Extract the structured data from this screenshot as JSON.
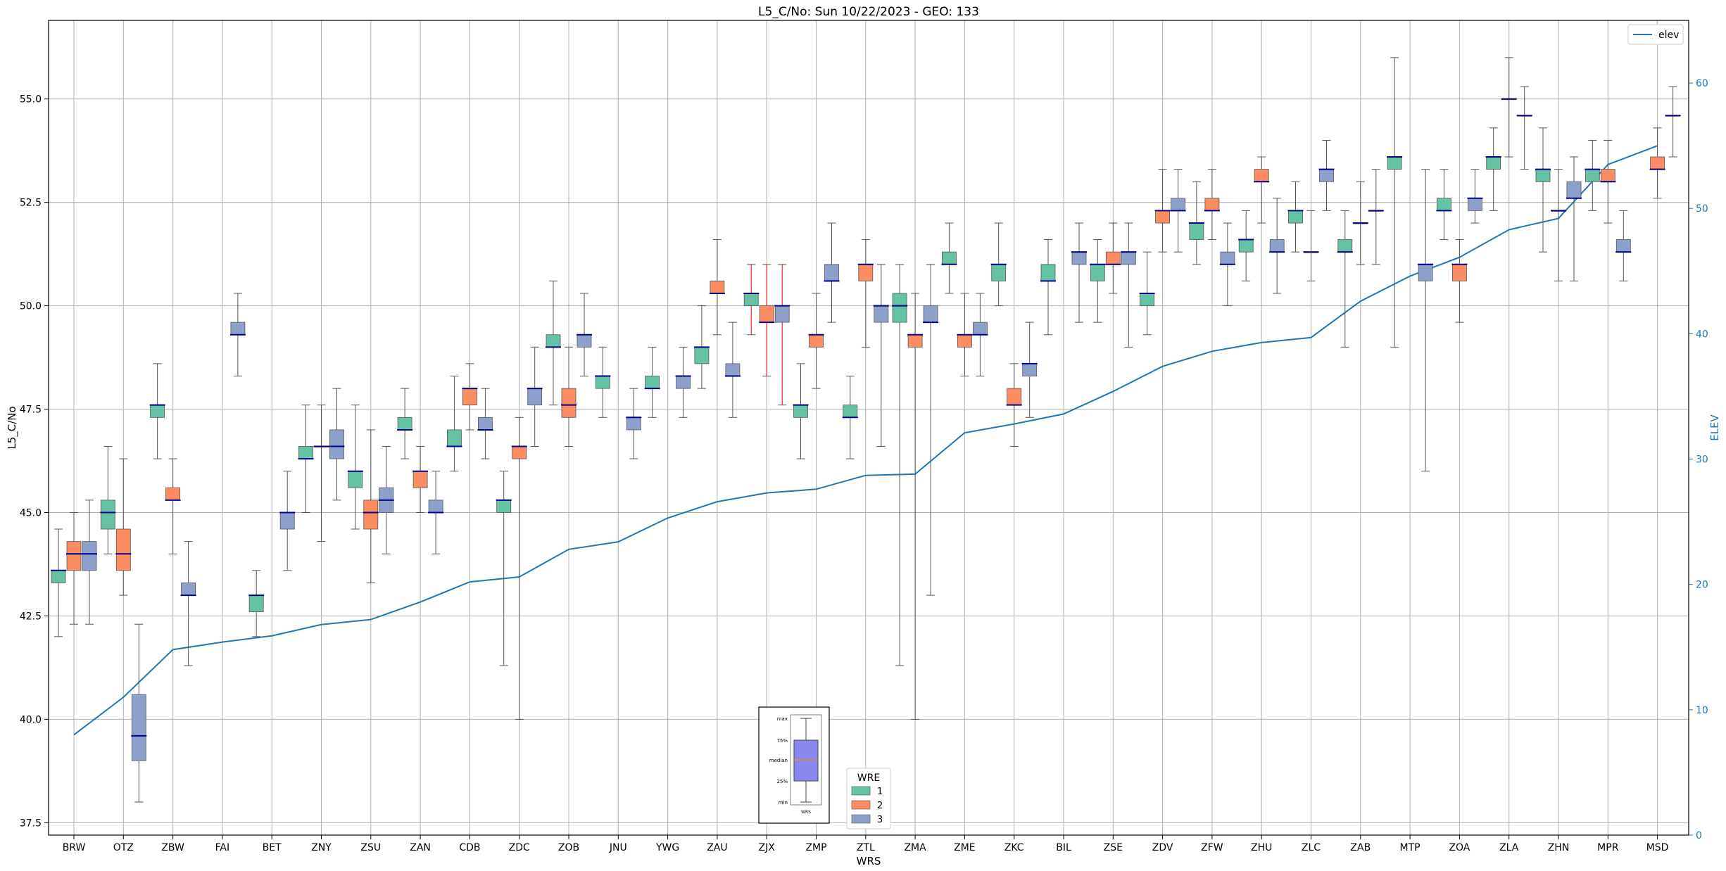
{
  "chart_data": {
    "type": "box",
    "title": "L5_C/No: Sun 10/22/2023 - GEO: 133",
    "xlabel": "WRS",
    "ylabel": "L5_C/No",
    "y2label": "ELEV",
    "ylim": [
      37.2,
      56.9
    ],
    "y2lim": [
      0,
      65
    ],
    "yticks": [
      "37.5",
      "40.0",
      "42.5",
      "45.0",
      "47.5",
      "50.0",
      "52.5",
      "55.0"
    ],
    "y2ticks": [
      "0",
      "10",
      "20",
      "30",
      "40",
      "50",
      "60"
    ],
    "grid": true,
    "categories": [
      "BRW",
      "OTZ",
      "ZBW",
      "FAI",
      "BET",
      "ZNY",
      "ZSU",
      "ZAN",
      "CDB",
      "ZDC",
      "ZOB",
      "JNU",
      "YWG",
      "ZAU",
      "ZJX",
      "ZMP",
      "ZTL",
      "ZMA",
      "ZME",
      "ZKC",
      "BIL",
      "ZSE",
      "ZDV",
      "ZFW",
      "ZHU",
      "ZLC",
      "ZAB",
      "MTP",
      "ZOA",
      "ZLA",
      "ZHN",
      "MPR",
      "MSD"
    ],
    "elev_series": {
      "name": "elev",
      "values": [
        8.0,
        11.0,
        14.8,
        15.4,
        15.9,
        16.8,
        17.2,
        18.6,
        20.2,
        20.6,
        22.8,
        23.4,
        25.3,
        26.6,
        27.3,
        27.6,
        28.7,
        28.8,
        32.1,
        32.8,
        33.6,
        35.4,
        37.4,
        38.6,
        39.3,
        39.7,
        42.6,
        44.6,
        46.1,
        48.3,
        49.2,
        53.5,
        55.0
      ]
    },
    "legend_wre": {
      "title": "WRE",
      "entries": [
        {
          "name": "1",
          "color": "#66c2a5"
        },
        {
          "name": "2",
          "color": "#fc8d62"
        },
        {
          "name": "3",
          "color": "#8da0cb"
        }
      ]
    },
    "legend_elev": {
      "label": "elev",
      "color": "#1f77b4"
    },
    "inset_labels": [
      "max",
      "75%",
      "median",
      "25%",
      "min",
      "WRS"
    ],
    "box_series": [
      {
        "name": "1",
        "color": "#66c2a5",
        "boxes": [
          {
            "cat": 0,
            "q1": 43.3,
            "med": 43.6,
            "q3": 43.6,
            "min": 42.0,
            "max": 44.6
          },
          {
            "cat": 1,
            "q1": 44.6,
            "med": 45.0,
            "q3": 45.3,
            "min": 44.0,
            "max": 46.6
          },
          {
            "cat": 2,
            "q1": 47.3,
            "med": 47.6,
            "q3": 47.6,
            "min": 46.3,
            "max": 48.6
          },
          {
            "cat": 4,
            "q1": 42.6,
            "med": 43.0,
            "q3": 43.0,
            "min": 42.0,
            "max": 43.6
          },
          {
            "cat": 5,
            "q1": 46.3,
            "med": 46.3,
            "q3": 46.6,
            "min": 45.0,
            "max": 47.6
          },
          {
            "cat": 6,
            "q1": 45.6,
            "med": 46.0,
            "q3": 46.0,
            "min": 44.6,
            "max": 47.6
          },
          {
            "cat": 7,
            "q1": 47.0,
            "med": 47.0,
            "q3": 47.3,
            "min": 46.3,
            "max": 48.0
          },
          {
            "cat": 8,
            "q1": 46.6,
            "med": 46.6,
            "q3": 47.0,
            "min": 46.0,
            "max": 48.3
          },
          {
            "cat": 9,
            "q1": 45.0,
            "med": 45.3,
            "q3": 45.3,
            "min": 41.3,
            "max": 46.0
          },
          {
            "cat": 10,
            "q1": 49.0,
            "med": 49.0,
            "q3": 49.3,
            "min": 47.6,
            "max": 50.6
          },
          {
            "cat": 11,
            "q1": 48.0,
            "med": 48.3,
            "q3": 48.3,
            "min": 47.3,
            "max": 49.0
          },
          {
            "cat": 12,
            "q1": 48.0,
            "med": 48.0,
            "q3": 48.3,
            "min": 47.3,
            "max": 49.0
          },
          {
            "cat": 13,
            "q1": 48.6,
            "med": 49.0,
            "q3": 49.0,
            "min": 48.0,
            "max": 50.0
          },
          {
            "cat": 14,
            "q1": 50.0,
            "med": 50.3,
            "q3": 50.3,
            "min": 49.3,
            "max": 51.0,
            "red_whisker": true
          },
          {
            "cat": 15,
            "q1": 47.3,
            "med": 47.6,
            "q3": 47.6,
            "min": 46.3,
            "max": 48.6
          },
          {
            "cat": 16,
            "q1": 47.3,
            "med": 47.3,
            "q3": 47.6,
            "min": 46.3,
            "max": 48.3
          },
          {
            "cat": 17,
            "q1": 49.6,
            "med": 50.0,
            "q3": 50.3,
            "min": 41.3,
            "max": 51.0
          },
          {
            "cat": 18,
            "q1": 51.0,
            "med": 51.0,
            "q3": 51.3,
            "min": 50.3,
            "max": 52.0
          },
          {
            "cat": 19,
            "q1": 50.6,
            "med": 51.0,
            "q3": 51.0,
            "min": 50.0,
            "max": 52.0
          },
          {
            "cat": 20,
            "q1": 50.6,
            "med": 50.6,
            "q3": 51.0,
            "min": 49.3,
            "max": 51.6
          },
          {
            "cat": 21,
            "q1": 50.6,
            "med": 51.0,
            "q3": 51.0,
            "min": 49.6,
            "max": 51.6
          },
          {
            "cat": 22,
            "q1": 50.0,
            "med": 50.3,
            "q3": 50.3,
            "min": 49.3,
            "max": 51.3
          },
          {
            "cat": 23,
            "q1": 51.6,
            "med": 52.0,
            "q3": 52.0,
            "min": 51.0,
            "max": 53.0
          },
          {
            "cat": 24,
            "q1": 51.3,
            "med": 51.6,
            "q3": 51.6,
            "min": 50.6,
            "max": 52.3
          },
          {
            "cat": 25,
            "q1": 52.0,
            "med": 52.3,
            "q3": 52.3,
            "min": 51.3,
            "max": 53.0
          },
          {
            "cat": 26,
            "q1": 51.3,
            "med": 51.3,
            "q3": 51.6,
            "min": 49.0,
            "max": 52.3
          },
          {
            "cat": 27,
            "q1": 53.3,
            "med": 53.6,
            "q3": 53.6,
            "min": 49.0,
            "max": 56.0
          },
          {
            "cat": 28,
            "q1": 52.3,
            "med": 52.3,
            "q3": 52.6,
            "min": 51.6,
            "max": 53.3
          },
          {
            "cat": 29,
            "q1": 53.3,
            "med": 53.6,
            "q3": 53.6,
            "min": 52.3,
            "max": 54.3
          },
          {
            "cat": 30,
            "q1": 53.0,
            "med": 53.3,
            "q3": 53.3,
            "min": 51.3,
            "max": 54.3
          },
          {
            "cat": 31,
            "q1": 53.0,
            "med": 53.3,
            "q3": 53.3,
            "min": 52.3,
            "max": 54.0
          }
        ]
      },
      {
        "name": "2",
        "color": "#fc8d62",
        "boxes": [
          {
            "cat": 0,
            "q1": 43.6,
            "med": 44.0,
            "q3": 44.3,
            "min": 42.3,
            "max": 45.0
          },
          {
            "cat": 1,
            "q1": 43.6,
            "med": 44.0,
            "q3": 44.6,
            "min": 43.0,
            "max": 46.3
          },
          {
            "cat": 2,
            "q1": 45.3,
            "med": 45.3,
            "q3": 45.6,
            "min": 44.0,
            "max": 46.3
          },
          {
            "cat": 5,
            "q1": 46.6,
            "med": 46.6,
            "q3": 46.6,
            "min": 44.3,
            "max": 47.6
          },
          {
            "cat": 6,
            "q1": 44.6,
            "med": 45.0,
            "q3": 45.3,
            "min": 43.3,
            "max": 47.0
          },
          {
            "cat": 7,
            "q1": 45.6,
            "med": 46.0,
            "q3": 46.0,
            "min": 45.0,
            "max": 46.6
          },
          {
            "cat": 8,
            "q1": 47.6,
            "med": 48.0,
            "q3": 48.0,
            "min": 47.0,
            "max": 48.6
          },
          {
            "cat": 9,
            "q1": 46.3,
            "med": 46.6,
            "q3": 46.6,
            "min": 40.0,
            "max": 47.3
          },
          {
            "cat": 10,
            "q1": 47.3,
            "med": 47.6,
            "q3": 48.0,
            "min": 46.6,
            "max": 49.0
          },
          {
            "cat": 13,
            "q1": 50.3,
            "med": 50.3,
            "q3": 50.6,
            "min": 49.3,
            "max": 51.6
          },
          {
            "cat": 14,
            "q1": 49.6,
            "med": 49.6,
            "q3": 50.0,
            "min": 48.3,
            "max": 51.0,
            "red_whisker": true
          },
          {
            "cat": 15,
            "q1": 49.0,
            "med": 49.3,
            "q3": 49.3,
            "min": 48.0,
            "max": 50.3
          },
          {
            "cat": 16,
            "q1": 50.6,
            "med": 51.0,
            "q3": 51.0,
            "min": 49.0,
            "max": 51.6
          },
          {
            "cat": 17,
            "q1": 49.0,
            "med": 49.3,
            "q3": 49.3,
            "min": 40.0,
            "max": 50.3
          },
          {
            "cat": 18,
            "q1": 49.0,
            "med": 49.3,
            "q3": 49.3,
            "min": 48.3,
            "max": 50.3
          },
          {
            "cat": 19,
            "q1": 47.6,
            "med": 47.6,
            "q3": 48.0,
            "min": 46.6,
            "max": 48.6
          },
          {
            "cat": 21,
            "q1": 51.0,
            "med": 51.0,
            "q3": 51.3,
            "min": 50.3,
            "max": 52.0
          },
          {
            "cat": 22,
            "q1": 52.0,
            "med": 52.3,
            "q3": 52.3,
            "min": 51.3,
            "max": 53.3
          },
          {
            "cat": 23,
            "q1": 52.3,
            "med": 52.3,
            "q3": 52.6,
            "min": 51.6,
            "max": 53.3
          },
          {
            "cat": 24,
            "q1": 53.0,
            "med": 53.0,
            "q3": 53.3,
            "min": 52.0,
            "max": 53.6
          },
          {
            "cat": 25,
            "q1": 51.3,
            "med": 51.3,
            "q3": 51.3,
            "min": 50.6,
            "max": 52.3
          },
          {
            "cat": 26,
            "q1": 52.0,
            "med": 52.0,
            "q3": 52.0,
            "min": 51.0,
            "max": 53.0
          },
          {
            "cat": 28,
            "q1": 50.6,
            "med": 51.0,
            "q3": 51.0,
            "min": 49.6,
            "max": 51.6
          },
          {
            "cat": 29,
            "q1": 55.0,
            "med": 55.0,
            "q3": 55.0,
            "min": 53.6,
            "max": 56.0
          },
          {
            "cat": 30,
            "q1": 52.3,
            "med": 52.3,
            "q3": 52.3,
            "min": 50.6,
            "max": 53.3
          },
          {
            "cat": 31,
            "q1": 53.0,
            "med": 53.0,
            "q3": 53.3,
            "min": 52.0,
            "max": 54.0
          },
          {
            "cat": 32,
            "q1": 53.3,
            "med": 53.3,
            "q3": 53.6,
            "min": 52.6,
            "max": 54.3
          }
        ]
      },
      {
        "name": "3",
        "color": "#8da0cb",
        "boxes": [
          {
            "cat": 0,
            "q1": 43.6,
            "med": 44.0,
            "q3": 44.3,
            "min": 42.3,
            "max": 45.3
          },
          {
            "cat": 1,
            "q1": 39.0,
            "med": 39.6,
            "q3": 40.6,
            "min": 38.0,
            "max": 42.3
          },
          {
            "cat": 2,
            "q1": 43.0,
            "med": 43.0,
            "q3": 43.3,
            "min": 41.3,
            "max": 44.3
          },
          {
            "cat": 3,
            "q1": 49.3,
            "med": 49.3,
            "q3": 49.6,
            "min": 48.3,
            "max": 50.3
          },
          {
            "cat": 4,
            "q1": 44.6,
            "med": 45.0,
            "q3": 45.0,
            "min": 43.6,
            "max": 46.0
          },
          {
            "cat": 5,
            "q1": 46.3,
            "med": 46.6,
            "q3": 47.0,
            "min": 45.3,
            "max": 48.0
          },
          {
            "cat": 6,
            "q1": 45.0,
            "med": 45.3,
            "q3": 45.6,
            "min": 44.0,
            "max": 46.6
          },
          {
            "cat": 7,
            "q1": 45.0,
            "med": 45.0,
            "q3": 45.3,
            "min": 44.0,
            "max": 46.0
          },
          {
            "cat": 8,
            "q1": 47.0,
            "med": 47.0,
            "q3": 47.3,
            "min": 46.3,
            "max": 48.0
          },
          {
            "cat": 9,
            "q1": 47.6,
            "med": 48.0,
            "q3": 48.0,
            "min": 46.6,
            "max": 49.0
          },
          {
            "cat": 10,
            "q1": 49.0,
            "med": 49.3,
            "q3": 49.3,
            "min": 48.3,
            "max": 50.3
          },
          {
            "cat": 11,
            "q1": 47.0,
            "med": 47.3,
            "q3": 47.3,
            "min": 46.3,
            "max": 48.0
          },
          {
            "cat": 12,
            "q1": 48.0,
            "med": 48.3,
            "q3": 48.3,
            "min": 47.3,
            "max": 49.0
          },
          {
            "cat": 13,
            "q1": 48.3,
            "med": 48.3,
            "q3": 48.6,
            "min": 47.3,
            "max": 49.6
          },
          {
            "cat": 14,
            "q1": 49.6,
            "med": 50.0,
            "q3": 50.0,
            "min": 47.6,
            "max": 51.0,
            "red_whisker": true
          },
          {
            "cat": 15,
            "q1": 50.6,
            "med": 50.6,
            "q3": 51.0,
            "min": 49.6,
            "max": 52.0
          },
          {
            "cat": 16,
            "q1": 49.6,
            "med": 50.0,
            "q3": 50.0,
            "min": 46.6,
            "max": 51.0
          },
          {
            "cat": 17,
            "q1": 49.6,
            "med": 49.6,
            "q3": 50.0,
            "min": 43.0,
            "max": 51.0
          },
          {
            "cat": 18,
            "q1": 49.3,
            "med": 49.3,
            "q3": 49.6,
            "min": 48.3,
            "max": 50.3
          },
          {
            "cat": 19,
            "q1": 48.3,
            "med": 48.6,
            "q3": 48.6,
            "min": 47.3,
            "max": 49.6
          },
          {
            "cat": 20,
            "q1": 51.0,
            "med": 51.3,
            "q3": 51.3,
            "min": 49.6,
            "max": 52.0
          },
          {
            "cat": 21,
            "q1": 51.0,
            "med": 51.3,
            "q3": 51.3,
            "min": 49.0,
            "max": 52.0
          },
          {
            "cat": 22,
            "q1": 52.3,
            "med": 52.3,
            "q3": 52.6,
            "min": 51.3,
            "max": 53.3
          },
          {
            "cat": 23,
            "q1": 51.0,
            "med": 51.0,
            "q3": 51.3,
            "min": 50.0,
            "max": 52.0
          },
          {
            "cat": 24,
            "q1": 51.3,
            "med": 51.3,
            "q3": 51.6,
            "min": 50.3,
            "max": 52.6
          },
          {
            "cat": 25,
            "q1": 53.0,
            "med": 53.3,
            "q3": 53.3,
            "min": 52.3,
            "max": 54.0
          },
          {
            "cat": 26,
            "q1": 52.3,
            "med": 52.3,
            "q3": 52.3,
            "min": 51.0,
            "max": 53.3
          },
          {
            "cat": 27,
            "q1": 50.6,
            "med": 51.0,
            "q3": 51.0,
            "min": 46.0,
            "max": 53.3
          },
          {
            "cat": 28,
            "q1": 52.3,
            "med": 52.6,
            "q3": 52.6,
            "min": 52.0,
            "max": 53.3
          },
          {
            "cat": 29,
            "q1": 54.6,
            "med": 54.6,
            "q3": 54.6,
            "min": 53.3,
            "max": 55.3
          },
          {
            "cat": 30,
            "q1": 52.6,
            "med": 52.6,
            "q3": 53.0,
            "min": 50.6,
            "max": 53.6
          },
          {
            "cat": 31,
            "q1": 51.3,
            "med": 51.3,
            "q3": 51.6,
            "min": 50.6,
            "max": 52.3
          },
          {
            "cat": 32,
            "q1": 54.6,
            "med": 54.6,
            "q3": 54.6,
            "min": 53.6,
            "max": 55.3
          }
        ]
      }
    ]
  }
}
